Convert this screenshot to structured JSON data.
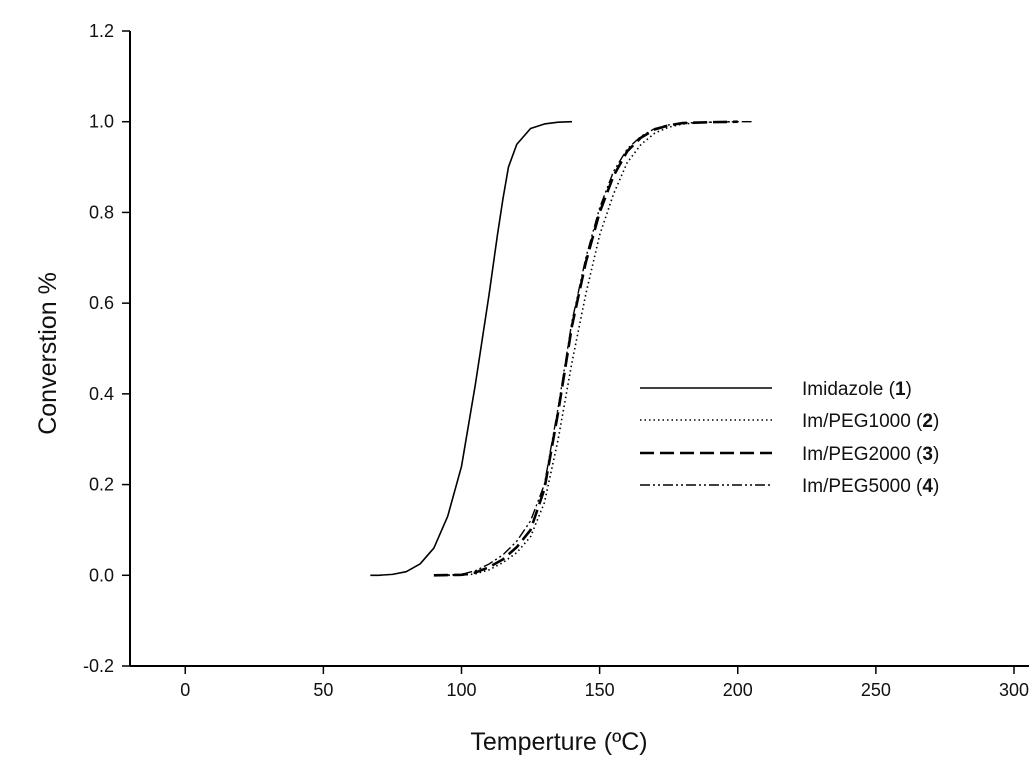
{
  "chart_data": {
    "type": "line",
    "title": "",
    "xlabel": "Temperture (ºC)",
    "ylabel": "Converstion %",
    "xlim": [
      -20,
      300
    ],
    "ylim": [
      -0.2,
      1.2
    ],
    "x_ticks": [
      "0",
      "50",
      "100",
      "150",
      "200",
      "250",
      "300"
    ],
    "y_ticks": [
      "-0.2",
      "0.0",
      "0.2",
      "0.4",
      "0.6",
      "0.8",
      "1.0",
      "1.2"
    ],
    "grid": false,
    "legend_position": "center-right",
    "series": [
      {
        "name": "Imidazole",
        "label_num": "1",
        "style": "solid",
        "x": [
          67,
          70,
          75,
          80,
          85,
          90,
          95,
          100,
          105,
          110,
          113,
          115,
          117,
          120,
          125,
          130,
          135,
          140
        ],
        "y": [
          0.0,
          0.0,
          0.002,
          0.008,
          0.025,
          0.06,
          0.13,
          0.24,
          0.42,
          0.62,
          0.75,
          0.83,
          0.9,
          0.95,
          0.985,
          0.995,
          0.999,
          1.0
        ]
      },
      {
        "name": "Im/PEG1000",
        "label_num": "2",
        "style": "dotted",
        "x": [
          92,
          100,
          105,
          110,
          115,
          120,
          125,
          130,
          135,
          140,
          145,
          150,
          155,
          160,
          165,
          170,
          175,
          180,
          190,
          200
        ],
        "y": [
          0.0,
          0.0,
          0.003,
          0.012,
          0.028,
          0.05,
          0.085,
          0.16,
          0.3,
          0.47,
          0.62,
          0.75,
          0.84,
          0.91,
          0.95,
          0.975,
          0.988,
          0.995,
          0.999,
          1.0
        ]
      },
      {
        "name": "Im/PEG2000",
        "label_num": "3",
        "style": "dashed",
        "x": [
          90,
          100,
          105,
          110,
          115,
          120,
          125,
          130,
          135,
          140,
          145,
          150,
          155,
          160,
          165,
          170,
          175,
          180,
          190,
          200
        ],
        "y": [
          0.0,
          0.001,
          0.006,
          0.018,
          0.035,
          0.062,
          0.1,
          0.19,
          0.36,
          0.55,
          0.69,
          0.8,
          0.88,
          0.935,
          0.965,
          0.983,
          0.992,
          0.997,
          0.999,
          1.0
        ]
      },
      {
        "name": "Im/PEG5000",
        "label_num": "4",
        "style": "dash-dot-dot",
        "x": [
          92,
          100,
          105,
          110,
          115,
          120,
          125,
          130,
          135,
          140,
          145,
          150,
          155,
          160,
          165,
          170,
          175,
          180,
          190,
          200,
          205
        ],
        "y": [
          0.0,
          0.002,
          0.01,
          0.025,
          0.045,
          0.075,
          0.12,
          0.2,
          0.37,
          0.56,
          0.7,
          0.81,
          0.89,
          0.94,
          0.968,
          0.985,
          0.993,
          0.997,
          0.999,
          1.0,
          1.0
        ]
      }
    ]
  }
}
